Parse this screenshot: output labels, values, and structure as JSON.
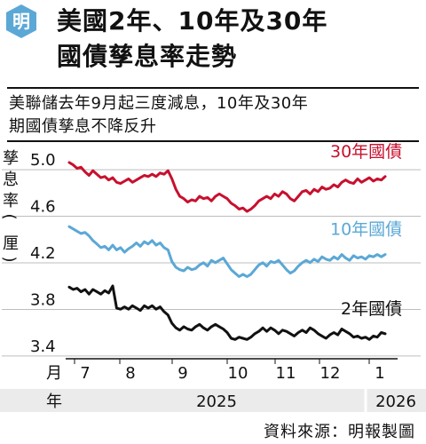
{
  "logo": {
    "text": "明",
    "color": "#5ba8d6"
  },
  "header": {
    "title_line1": "美國2年、10年及30年",
    "title_line2": "國債孳息率走勢"
  },
  "subtitle": {
    "line1": "美聯儲去年9月起三度減息，10年及30年",
    "line2": "期國債孳息不降反升"
  },
  "source": "資料來源：明報製圖",
  "chart_data": {
    "type": "line",
    "ylabel": "孳息率(厘)",
    "ylim": [
      3.3,
      5.1
    ],
    "yticks": [
      3.4,
      3.8,
      4.2,
      4.6,
      5.0
    ],
    "ytick_labels": [
      "3.4",
      "3.8",
      "4.2",
      "4.6",
      "5.0"
    ],
    "x_row_label": "月",
    "months": [
      "7",
      "8",
      "9",
      "10",
      "11",
      "12",
      "1"
    ],
    "year_row_label": "年",
    "years": [
      "2025",
      "2026"
    ],
    "series": [
      {
        "name": "30年國債",
        "color": "#c8102e",
        "values": [
          4.97,
          4.95,
          4.92,
          4.93,
          4.89,
          4.86,
          4.9,
          4.87,
          4.84,
          4.85,
          4.82,
          4.84,
          4.8,
          4.79,
          4.81,
          4.83,
          4.8,
          4.82,
          4.84,
          4.86,
          4.85,
          4.87,
          4.85,
          4.88,
          4.87,
          4.9,
          4.83,
          4.74,
          4.68,
          4.66,
          4.63,
          4.65,
          4.64,
          4.68,
          4.66,
          4.67,
          4.64,
          4.68,
          4.7,
          4.68,
          4.66,
          4.62,
          4.6,
          4.57,
          4.58,
          4.55,
          4.57,
          4.6,
          4.64,
          4.66,
          4.68,
          4.66,
          4.7,
          4.68,
          4.72,
          4.7,
          4.66,
          4.64,
          4.68,
          4.72,
          4.73,
          4.7,
          4.74,
          4.72,
          4.76,
          4.74,
          4.75,
          4.78,
          4.76,
          4.8,
          4.82,
          4.8,
          4.79,
          4.83,
          4.8,
          4.82,
          4.84,
          4.81,
          4.83,
          4.82,
          4.85
        ]
      },
      {
        "name": "10年國債",
        "color": "#5ba8d6",
        "values": [
          4.42,
          4.4,
          4.38,
          4.36,
          4.37,
          4.34,
          4.3,
          4.27,
          4.24,
          4.25,
          4.22,
          4.26,
          4.22,
          4.24,
          4.2,
          4.23,
          4.25,
          4.28,
          4.25,
          4.29,
          4.27,
          4.3,
          4.26,
          4.28,
          4.24,
          4.22,
          4.12,
          4.07,
          4.05,
          4.04,
          4.07,
          4.05,
          4.06,
          4.09,
          4.11,
          4.08,
          4.13,
          4.11,
          4.13,
          4.15,
          4.1,
          4.05,
          4.02,
          3.99,
          4.01,
          3.99,
          4.01,
          4.05,
          4.09,
          4.11,
          4.08,
          4.12,
          4.11,
          4.13,
          4.09,
          4.05,
          4.02,
          4.04,
          4.08,
          4.11,
          4.13,
          4.11,
          4.14,
          4.12,
          4.16,
          4.14,
          4.13,
          4.16,
          4.14,
          4.18,
          4.15,
          4.13,
          4.17,
          4.15,
          4.16,
          4.14,
          4.17,
          4.16,
          4.18,
          4.16,
          4.18
        ]
      },
      {
        "name": "2年國債",
        "color": "#111111",
        "values": [
          3.9,
          3.88,
          3.89,
          3.86,
          3.88,
          3.84,
          3.88,
          3.86,
          3.84,
          3.87,
          3.85,
          3.91,
          3.72,
          3.71,
          3.73,
          3.71,
          3.74,
          3.72,
          3.7,
          3.74,
          3.72,
          3.74,
          3.71,
          3.73,
          3.69,
          3.66,
          3.59,
          3.55,
          3.53,
          3.56,
          3.54,
          3.53,
          3.56,
          3.58,
          3.55,
          3.53,
          3.56,
          3.58,
          3.56,
          3.54,
          3.51,
          3.46,
          3.45,
          3.47,
          3.46,
          3.45,
          3.47,
          3.5,
          3.52,
          3.55,
          3.52,
          3.55,
          3.53,
          3.5,
          3.53,
          3.52,
          3.5,
          3.48,
          3.51,
          3.53,
          3.51,
          3.55,
          3.53,
          3.5,
          3.48,
          3.46,
          3.49,
          3.51,
          3.49,
          3.54,
          3.52,
          3.5,
          3.47,
          3.48,
          3.46,
          3.47,
          3.45,
          3.48,
          3.47,
          3.51,
          3.5
        ]
      }
    ]
  }
}
